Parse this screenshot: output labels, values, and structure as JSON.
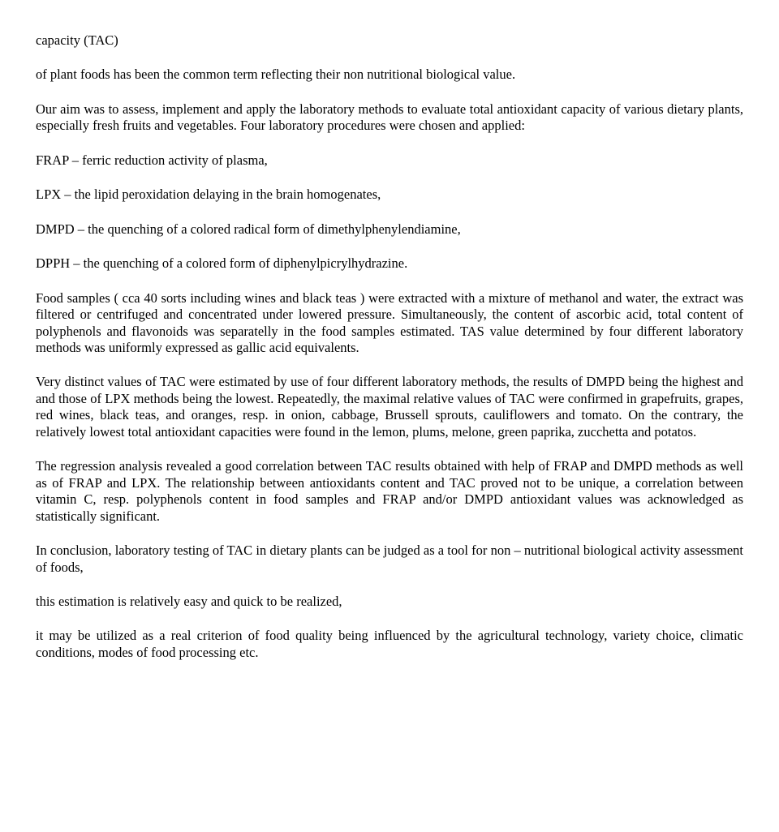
{
  "p1": "capacity (TAC)",
  "p2": "of plant foods has been the common term reflecting their non nutritional biological value.",
  "p3": "Our aim was to assess, implement and apply the laboratory methods to evaluate total antioxidant capacity of various dietary plants, especially fresh fruits and vegetables. Four laboratory procedures were chosen and applied:",
  "p4": "FRAP – ferric reduction activity of plasma,",
  "p5": "LPX – the lipid peroxidation delaying in the brain homogenates,",
  "p6": "DMPD – the quenching of a colored radical form of dimethylphenylendiamine,",
  "p7": "DPPH – the quenching of a colored form of diphenylpicrylhydrazine.",
  "p8": "Food samples ( cca 40 sorts including wines and black teas ) were extracted with a mixture of methanol and water, the extract was filtered or centrifuged and concentrated under lowered pressure. Simultaneously, the content of ascorbic acid, total content of polyphenols and flavonoids was separatelly in the food samples estimated. TAS value determined by four different laboratory methods was uniformly expressed as gallic acid equivalents.",
  "p9": "Very distinct values of TAC were estimated by use of four different laboratory methods, the results of DMPD being the highest and and those of LPX methods being the lowest. Repeatedly, the maximal relative values of TAC were confirmed in grapefruits, grapes, red wines, black teas, and oranges, resp. in onion, cabbage, Brussell sprouts, cauliflowers and tomato. On the contrary, the relatively lowest total antioxidant capacities were found in the lemon, plums, melone, green paprika, zucchetta and potatos.",
  "p10": "The regression analysis revealed a good correlation between TAC results obtained with help of FRAP and DMPD methods as well as of FRAP and LPX. The relationship between antioxidants content and TAC proved not to be unique, a correlation between vitamin C, resp. polyphenols content in food samples and FRAP and/or DMPD antioxidant values was acknowledged as statistically significant.",
  "p11": "In conclusion, laboratory testing of TAC in dietary plants can be judged as a tool for non – nutritional biological activity assessment of foods,",
  "p12": "this estimation is relatively easy and quick to be realized,",
  "p13": "it may be utilized as a real criterion of food quality being influenced by the agricultural technology, variety choice, climatic conditions, modes of food processing etc."
}
